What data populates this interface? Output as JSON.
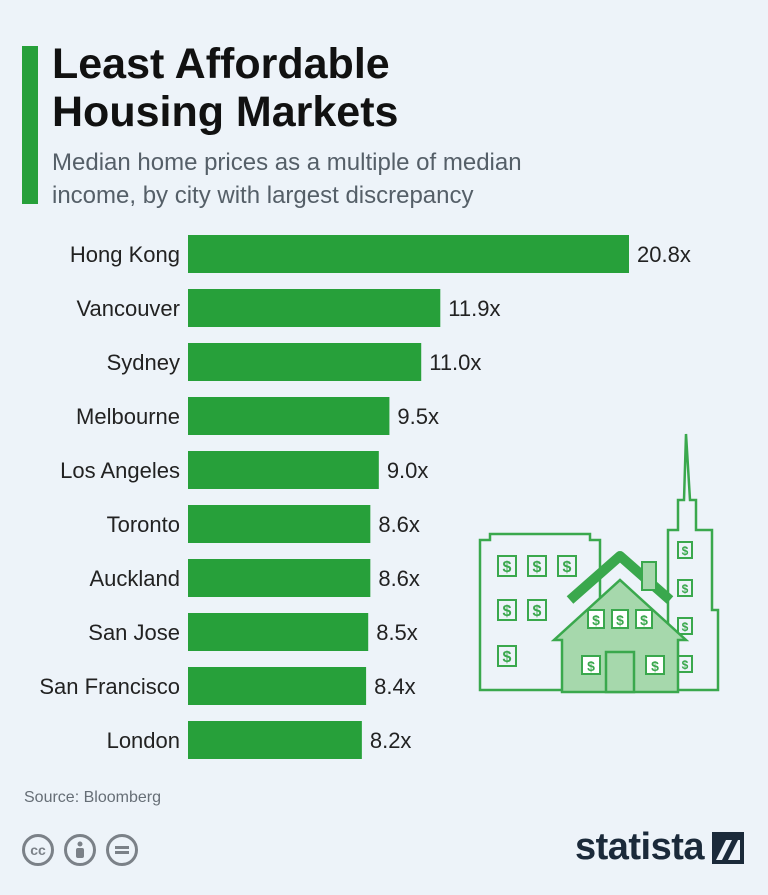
{
  "header": {
    "title": "Least Affordable\nHousing Markets",
    "subtitle": "Median home prices as a multiple of median\nincome, by city with largest discrepancy"
  },
  "chart_data": {
    "type": "bar",
    "orientation": "horizontal",
    "categories": [
      "Hong Kong",
      "Vancouver",
      "Sydney",
      "Melbourne",
      "Los Angeles",
      "Toronto",
      "Auckland",
      "San Jose",
      "San Francisco",
      "London"
    ],
    "values": [
      20.8,
      11.9,
      11.0,
      9.5,
      9.0,
      8.6,
      8.6,
      8.5,
      8.4,
      8.2
    ],
    "value_labels": [
      "20.8x",
      "11.9x",
      "11.0x",
      "9.5x",
      "9.0x",
      "8.6x",
      "8.6x",
      "8.5x",
      "8.4x",
      "8.2x"
    ],
    "bar_color": "#27a03a",
    "grid": false,
    "legend": "none"
  },
  "footer": {
    "source": "Source: Bloomberg",
    "brand": "statista",
    "license_icons": [
      "cc-icon",
      "attribution-icon",
      "no-derivatives-icon"
    ]
  },
  "colors": {
    "accent": "#27a03a",
    "background": "#edf3f9",
    "brand": "#1b2a3a"
  }
}
